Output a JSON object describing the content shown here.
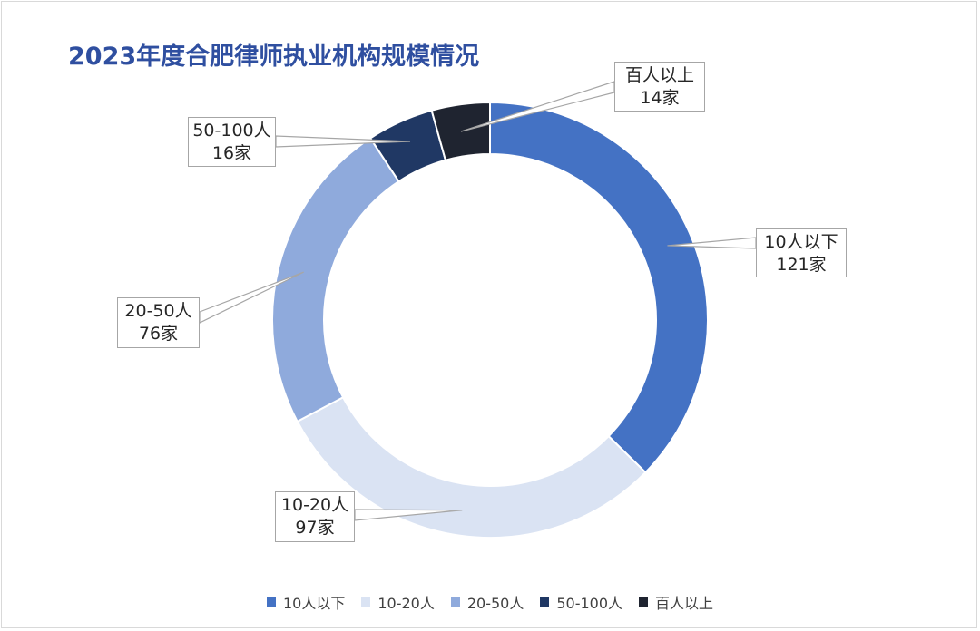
{
  "chart_data": {
    "type": "pie",
    "title": "2023年度合肥律师执业机构规模情况",
    "unit": "家",
    "categories": [
      "10人以下",
      "10-20人",
      "20-50人",
      "50-100人",
      "百人以上"
    ],
    "values": [
      121,
      97,
      76,
      16,
      14
    ],
    "colors": [
      "#4472c4",
      "#dae3f3",
      "#8faadc",
      "#203864",
      "#1f2430"
    ],
    "data_labels": [
      {
        "name": "10人以下",
        "value": "121家"
      },
      {
        "name": "10-20人",
        "value": "97家"
      },
      {
        "name": "20-50人",
        "value": "76家"
      },
      {
        "name": "50-100人",
        "value": "16家"
      },
      {
        "name": "百人以上",
        "value": "14家"
      }
    ],
    "legend_position": "bottom"
  }
}
